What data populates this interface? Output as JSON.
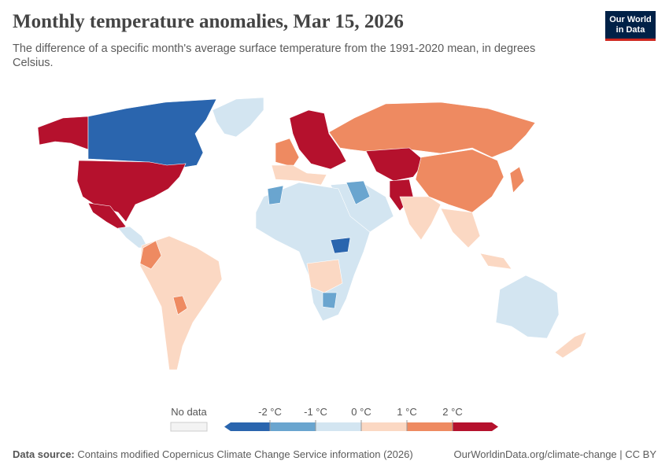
{
  "header": {
    "title": "Monthly temperature anomalies, Mar 15, 2026",
    "subtitle": "The difference of a specific month's average surface temperature from the 1991-2020 mean, in degrees Celsius.",
    "logo": [
      "Our World",
      "in Data"
    ]
  },
  "legend": {
    "no_data": "No data",
    "colors": [
      "#2a65ae",
      "#6aa5cf",
      "#d3e5f1",
      "#fbd8c3",
      "#ee8a61",
      "#b5112d"
    ],
    "ticks": [
      {
        "value": -2,
        "label": "-2 °C"
      },
      {
        "value": -1,
        "label": "-1 °C"
      },
      {
        "value": 0,
        "label": "0 °C"
      },
      {
        "value": 1,
        "label": "1 °C"
      },
      {
        "value": 2,
        "label": "2 °C"
      }
    ]
  },
  "footer": {
    "source_label": "Data source:",
    "source": "Contains modified Copernicus Climate Change Service information (2026)",
    "url": "OurWorldinData.org/climate-change | CC BY"
  }
}
